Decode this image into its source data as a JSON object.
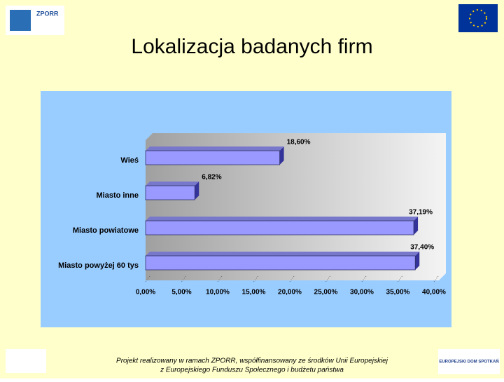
{
  "header": {
    "title": "Lokalizacja badanych firm",
    "logo_left": "ZPORR"
  },
  "chart_data": {
    "type": "hbar",
    "categories": [
      "Wieś",
      "Miasto inne",
      "Miasto powiatowe",
      "Miasto powyżej 60 tys"
    ],
    "values": [
      18.6,
      6.82,
      37.19,
      37.4
    ],
    "value_labels": [
      "18,60%",
      "6,82%",
      "37,19%",
      "37,40%"
    ],
    "color": "#9999ff",
    "xlim": [
      0,
      40
    ],
    "xticks": [
      {
        "value": 0,
        "label": "0,00%"
      },
      {
        "value": 5,
        "label": "5,00%"
      },
      {
        "value": 10,
        "label": "10,00%"
      },
      {
        "value": 15,
        "label": "15,00%"
      },
      {
        "value": 20,
        "label": "20,00%"
      },
      {
        "value": 25,
        "label": "25,00%"
      },
      {
        "value": 30,
        "label": "30,00%"
      },
      {
        "value": 35,
        "label": "35,00%"
      },
      {
        "value": 40,
        "label": "40,00%"
      }
    ],
    "grid": false
  },
  "footer": {
    "line1": "Projekt realizowany w ramach ZPORR, współfinansowany ze środków Unii Europejskiej",
    "line2": "z Europejskiego Funduszu Społecznego i budżetu państwa",
    "logo_right": "EUROPEJSKI DOM SPOTKAŃ"
  }
}
